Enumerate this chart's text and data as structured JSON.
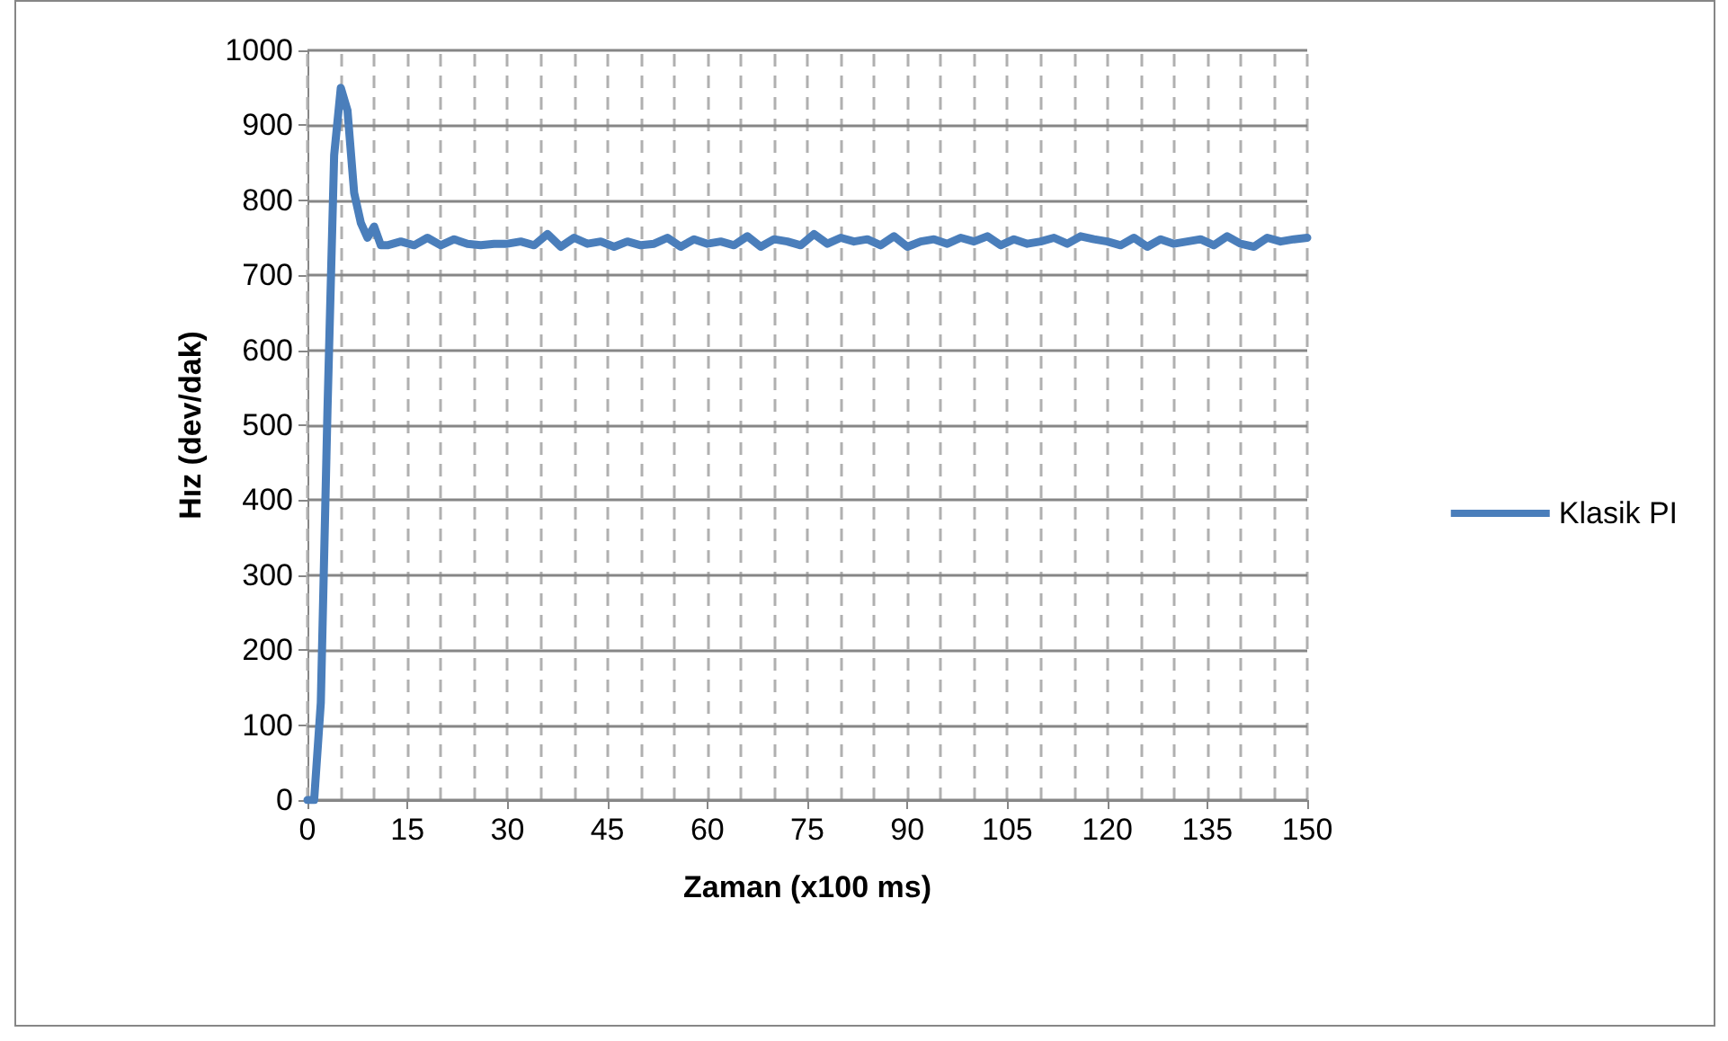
{
  "chart_data": {
    "type": "line",
    "xlabel": "Zaman (x100 ms)",
    "ylabel": "Hız (dev/dak)",
    "x": [
      0,
      1,
      2,
      3,
      4,
      5,
      6,
      7,
      8,
      9,
      10,
      11,
      12,
      14,
      16,
      18,
      20,
      22,
      24,
      26,
      28,
      30,
      32,
      34,
      36,
      38,
      40,
      42,
      44,
      46,
      48,
      50,
      52,
      54,
      56,
      58,
      60,
      62,
      64,
      66,
      68,
      70,
      72,
      74,
      76,
      78,
      80,
      82,
      84,
      86,
      88,
      90,
      92,
      94,
      96,
      98,
      100,
      102,
      104,
      106,
      108,
      110,
      112,
      114,
      116,
      118,
      120,
      122,
      124,
      126,
      128,
      130,
      132,
      134,
      136,
      138,
      140,
      142,
      144,
      146,
      148,
      150
    ],
    "series": [
      {
        "name": "Klasik PI",
        "color": "#4a7ebb",
        "values": [
          0,
          0,
          130,
          520,
          860,
          950,
          920,
          810,
          770,
          750,
          765,
          740,
          740,
          745,
          740,
          750,
          740,
          748,
          742,
          740,
          742,
          742,
          745,
          740,
          755,
          738,
          750,
          742,
          745,
          738,
          745,
          740,
          742,
          750,
          738,
          748,
          742,
          745,
          740,
          752,
          738,
          748,
          745,
          740,
          755,
          742,
          750,
          745,
          748,
          740,
          752,
          738,
          745,
          748,
          742,
          750,
          745,
          752,
          740,
          748,
          742,
          745,
          750,
          742,
          752,
          748,
          745,
          740,
          750,
          738,
          748,
          742,
          745,
          748,
          740,
          752,
          742,
          738,
          750,
          745,
          748,
          750
        ]
      }
    ],
    "xlim": [
      0,
      150
    ],
    "xticks": [
      0,
      {
        "value": 5,
        "label": null
      },
      {
        "value": 10,
        "label": null
      },
      15,
      {
        "value": 20,
        "label": null
      },
      {
        "value": 25,
        "label": null
      },
      30,
      {
        "value": 35,
        "label": null
      },
      {
        "value": 40,
        "label": null
      },
      45,
      {
        "value": 50,
        "label": null
      },
      {
        "value": 55,
        "label": null
      },
      60,
      {
        "value": 65,
        "label": null
      },
      {
        "value": 70,
        "label": null
      },
      75,
      {
        "value": 80,
        "label": null
      },
      {
        "value": 85,
        "label": null
      },
      90,
      {
        "value": 95,
        "label": null
      },
      {
        "value": 100,
        "label": null
      },
      105,
      {
        "value": 110,
        "label": null
      },
      {
        "value": 115,
        "label": null
      },
      120,
      {
        "value": 125,
        "label": null
      },
      {
        "value": 130,
        "label": null
      },
      135,
      {
        "value": 140,
        "label": null
      },
      {
        "value": 145,
        "label": null
      },
      150
    ],
    "ylim": [
      0,
      1000
    ],
    "yticks": [
      0,
      100,
      200,
      300,
      400,
      500,
      600,
      700,
      800,
      900,
      1000
    ],
    "grid": true,
    "legend": "right",
    "marker": "none",
    "line_style": "solid"
  }
}
